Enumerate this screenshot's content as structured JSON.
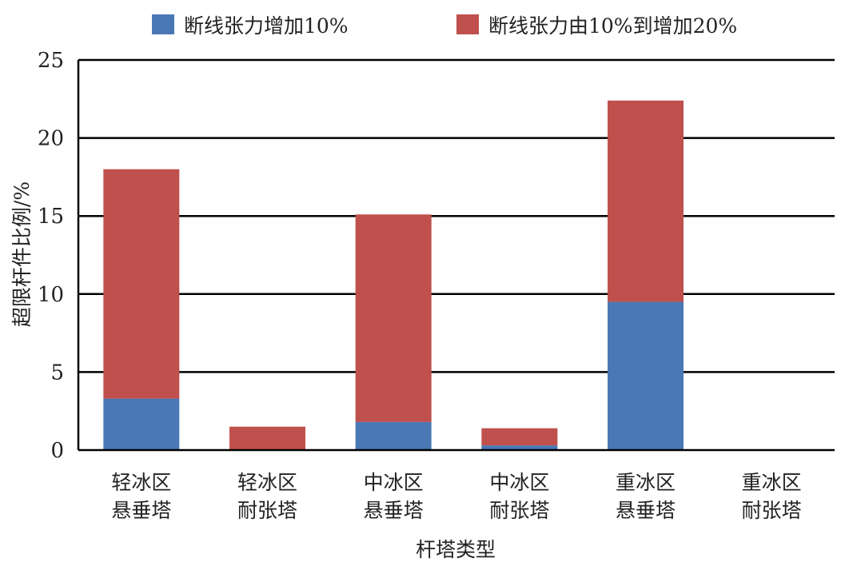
{
  "chart_data": {
    "type": "bar",
    "stacked": true,
    "xlabel": "杆塔类型",
    "ylabel": "超限杆件比例/%",
    "ylim": [
      0,
      25
    ],
    "yticks": [
      0,
      5,
      10,
      15,
      20,
      25
    ],
    "grid": true,
    "legend_position": "top",
    "categories": [
      [
        "轻冰区",
        "悬垂塔"
      ],
      [
        "轻冰区",
        "耐张塔"
      ],
      [
        "中冰区",
        "悬垂塔"
      ],
      [
        "中冰区",
        "耐张塔"
      ],
      [
        "重冰区",
        "悬垂塔"
      ],
      [
        "重冰区",
        "耐张塔"
      ]
    ],
    "series": [
      {
        "name": "断线张力增加10%",
        "color": "#4a78b5",
        "values": [
          3.3,
          0.0,
          1.8,
          0.3,
          9.5,
          0.0
        ]
      },
      {
        "name": "断线张力由10%到增加20%",
        "color": "#c0504d",
        "values": [
          14.7,
          1.5,
          13.3,
          1.1,
          12.9,
          0.0
        ]
      }
    ]
  }
}
